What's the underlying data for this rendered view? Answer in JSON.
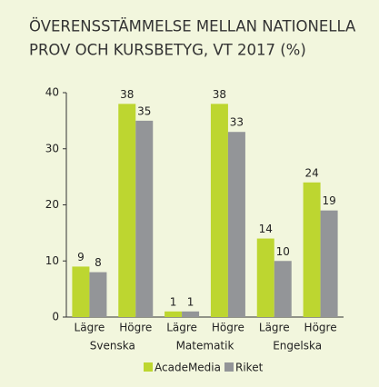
{
  "chart_data": {
    "type": "bar",
    "title": [
      "ÖVERENSSTÄMMELSE MELLAN NATIONELLA",
      "PROV OCH KURSBETYG, VT 2017 (%)"
    ],
    "categories": [
      "Lägre",
      "Högre",
      "Lägre",
      "Högre",
      "Lägre",
      "Högre"
    ],
    "groups": [
      {
        "name": "Svenska",
        "span": 2
      },
      {
        "name": "Matematik",
        "span": 2
      },
      {
        "name": "Engelska",
        "span": 2
      }
    ],
    "series": [
      {
        "name": "AcadeMedia",
        "color": "#bdd630",
        "values": [
          9,
          38,
          1,
          38,
          14,
          24
        ]
      },
      {
        "name": "Riket",
        "color": "#939598",
        "values": [
          8,
          35,
          1,
          33,
          10,
          19
        ]
      }
    ],
    "ylim": [
      0,
      40
    ],
    "yticks": [
      0,
      10,
      20,
      30,
      40
    ],
    "grid": false,
    "legend": "bottom"
  }
}
